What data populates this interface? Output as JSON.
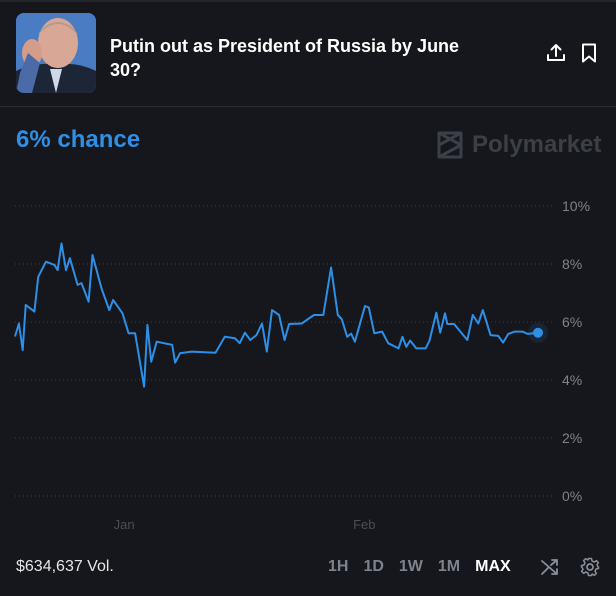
{
  "market": {
    "title": "Putin out as President of Russia by June 30?",
    "chance_label": "6% chance",
    "brand": "Polymarket",
    "volume": "$634,637 Vol."
  },
  "colors": {
    "accent": "#2e8fe6",
    "background": "#15171c",
    "grid": "#3a3e45",
    "muted": "#7d828b"
  },
  "icons": [
    "share-icon",
    "bookmark-icon",
    "polymarket-logo-icon",
    "shuffle-icon",
    "gear-icon"
  ],
  "controls": {
    "ranges": [
      "1H",
      "1D",
      "1W",
      "1M",
      "MAX"
    ],
    "selected_range": "MAX"
  },
  "chart_data": {
    "type": "line",
    "title": "",
    "xlabel": "",
    "ylabel": "",
    "ylim": [
      0,
      10
    ],
    "y_ticks": [
      "0%",
      "2%",
      "4%",
      "6%",
      "8%",
      "10%"
    ],
    "y_tick_values": [
      0,
      2,
      4,
      6,
      8,
      10
    ],
    "x_ticks": [
      {
        "label": "Jan",
        "date": "2024-01-01T00:00"
      },
      {
        "label": "Feb",
        "date": "2024-02-01T00:00"
      }
    ],
    "grid": "horizontal dotted",
    "y_axis_side": "right",
    "last_point_marker": true,
    "series": [
      {
        "points": [
          [
            "2023-12-17T22:00",
            5.5
          ],
          [
            "2023-12-18T10:00",
            5.95
          ],
          [
            "2023-12-18T22:00",
            5.03
          ],
          [
            "2023-12-19T07:00",
            6.59
          ],
          [
            "2023-12-20T10:00",
            6.36
          ],
          [
            "2023-12-20T22:00",
            7.56
          ],
          [
            "2023-12-21T22:00",
            8.08
          ],
          [
            "2023-12-23T00:00",
            7.97
          ],
          [
            "2023-12-23T10:00",
            7.79
          ],
          [
            "2023-12-23T22:00",
            8.71
          ],
          [
            "2023-12-24T12:00",
            7.79
          ],
          [
            "2023-12-25T00:00",
            8.2
          ],
          [
            "2023-12-26T00:00",
            7.28
          ],
          [
            "2023-12-26T12:00",
            7.34
          ],
          [
            "2023-12-27T10:00",
            6.7
          ],
          [
            "2023-12-27T22:00",
            8.31
          ],
          [
            "2023-12-29T02:00",
            7.16
          ],
          [
            "2023-12-30T02:00",
            6.41
          ],
          [
            "2023-12-30T14:00",
            6.76
          ],
          [
            "2023-12-31T19:00",
            6.3
          ],
          [
            "2024-01-01T14:00",
            5.61
          ],
          [
            "2024-01-02T10:00",
            5.61
          ],
          [
            "2024-01-03T14:00",
            3.77
          ],
          [
            "2024-01-04T00:00",
            5.9
          ],
          [
            "2024-01-04T12:00",
            4.63
          ],
          [
            "2024-01-05T05:00",
            5.32
          ],
          [
            "2024-01-07T05:00",
            5.21
          ],
          [
            "2024-01-07T14:00",
            4.6
          ],
          [
            "2024-01-08T05:00",
            4.92
          ],
          [
            "2024-01-09T17:00",
            4.98
          ],
          [
            "2024-01-12T19:00",
            4.94
          ],
          [
            "2024-01-14T00:00",
            5.49
          ],
          [
            "2024-01-15T07:00",
            5.44
          ],
          [
            "2024-01-15T22:00",
            5.27
          ],
          [
            "2024-01-16T14:00",
            5.63
          ],
          [
            "2024-01-17T07:00",
            5.38
          ],
          [
            "2024-01-18T02:00",
            5.55
          ],
          [
            "2024-01-18T19:00",
            5.95
          ],
          [
            "2024-01-19T10:00",
            4.98
          ],
          [
            "2024-01-20T02:00",
            6.41
          ],
          [
            "2024-01-21T00:00",
            6.24
          ],
          [
            "2024-01-21T17:00",
            5.38
          ],
          [
            "2024-01-22T07:00",
            5.93
          ],
          [
            "2024-01-23T22:00",
            5.95
          ],
          [
            "2024-01-25T12:00",
            6.24
          ],
          [
            "2024-01-26T17:00",
            6.24
          ],
          [
            "2024-01-27T17:00",
            7.88
          ],
          [
            "2024-01-28T14:00",
            6.24
          ],
          [
            "2024-01-29T02:00",
            6.1
          ],
          [
            "2024-01-29T19:00",
            5.49
          ],
          [
            "2024-01-30T07:00",
            5.6
          ],
          [
            "2024-01-30T19:00",
            5.32
          ],
          [
            "2024-02-01T02:00",
            6.55
          ],
          [
            "2024-02-01T14:00",
            6.5
          ],
          [
            "2024-02-02T07:00",
            5.61
          ],
          [
            "2024-02-03T07:00",
            5.67
          ],
          [
            "2024-02-04T02:00",
            5.27
          ],
          [
            "2024-02-05T10:00",
            5.09
          ],
          [
            "2024-02-05T22:00",
            5.49
          ],
          [
            "2024-02-06T10:00",
            5.15
          ],
          [
            "2024-02-06T22:00",
            5.36
          ],
          [
            "2024-02-07T17:00",
            5.09
          ],
          [
            "2024-02-08T22:00",
            5.09
          ],
          [
            "2024-02-09T10:00",
            5.36
          ],
          [
            "2024-02-10T07:00",
            6.32
          ],
          [
            "2024-02-10T19:00",
            5.63
          ],
          [
            "2024-02-11T10:00",
            6.3
          ],
          [
            "2024-02-11T17:00",
            5.93
          ],
          [
            "2024-02-12T14:00",
            5.93
          ],
          [
            "2024-02-14T07:00",
            5.38
          ],
          [
            "2024-02-15T00:00",
            6.24
          ],
          [
            "2024-02-15T17:00",
            5.95
          ],
          [
            "2024-02-16T07:00",
            6.41
          ],
          [
            "2024-02-17T07:00",
            5.55
          ],
          [
            "2024-02-18T07:00",
            5.52
          ],
          [
            "2024-02-18T22:00",
            5.29
          ],
          [
            "2024-02-19T14:00",
            5.59
          ],
          [
            "2024-02-20T10:00",
            5.67
          ],
          [
            "2024-02-21T10:00",
            5.67
          ],
          [
            "2024-02-22T02:00",
            5.59
          ],
          [
            "2024-02-23T10:00",
            5.63
          ]
        ]
      }
    ]
  }
}
